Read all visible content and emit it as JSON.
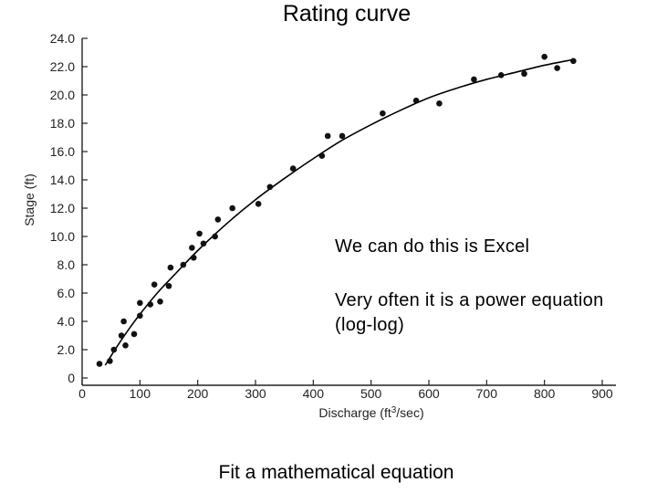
{
  "slide": {
    "title": "Rating curve",
    "note_1": "We can do this is Excel",
    "note_2": "Very often it is a power equation (log-log)",
    "bottom_note": "Fit a mathematical equation"
  },
  "chart_data": {
    "type": "scatter",
    "xlabel": "Discharge (ft3/sec)",
    "ylabel": "Stage (ft)",
    "xlim": [
      0,
      900
    ],
    "ylim": [
      0,
      24
    ],
    "x_ticks": [
      "0",
      "100",
      "200",
      "300",
      "400",
      "500",
      "600",
      "700",
      "800",
      "900"
    ],
    "y_ticks": [
      "0",
      "2.0",
      "4.0",
      "6.0",
      "8.0",
      "10.0",
      "12.0",
      "14.0",
      "16.0",
      "18.0",
      "20.0",
      "22.0",
      "24.0"
    ],
    "grid": false,
    "points": [
      {
        "x": 30,
        "y": 1.0
      },
      {
        "x": 48,
        "y": 1.2
      },
      {
        "x": 55,
        "y": 2.0
      },
      {
        "x": 68,
        "y": 3.0
      },
      {
        "x": 72,
        "y": 4.0
      },
      {
        "x": 75,
        "y": 2.3
      },
      {
        "x": 90,
        "y": 3.1
      },
      {
        "x": 100,
        "y": 5.3
      },
      {
        "x": 100,
        "y": 4.4
      },
      {
        "x": 118,
        "y": 5.2
      },
      {
        "x": 125,
        "y": 6.6
      },
      {
        "x": 135,
        "y": 5.4
      },
      {
        "x": 150,
        "y": 6.5
      },
      {
        "x": 153,
        "y": 7.8
      },
      {
        "x": 175,
        "y": 8.0
      },
      {
        "x": 190,
        "y": 9.2
      },
      {
        "x": 193,
        "y": 8.5
      },
      {
        "x": 203,
        "y": 10.2
      },
      {
        "x": 210,
        "y": 9.5
      },
      {
        "x": 230,
        "y": 10.0
      },
      {
        "x": 235,
        "y": 11.2
      },
      {
        "x": 260,
        "y": 12.0
      },
      {
        "x": 305,
        "y": 12.3
      },
      {
        "x": 325,
        "y": 13.5
      },
      {
        "x": 365,
        "y": 14.8
      },
      {
        "x": 415,
        "y": 15.7
      },
      {
        "x": 425,
        "y": 17.1
      },
      {
        "x": 450,
        "y": 17.1
      },
      {
        "x": 520,
        "y": 18.7
      },
      {
        "x": 578,
        "y": 19.6
      },
      {
        "x": 618,
        "y": 19.4
      },
      {
        "x": 678,
        "y": 21.1
      },
      {
        "x": 725,
        "y": 21.4
      },
      {
        "x": 765,
        "y": 21.5
      },
      {
        "x": 800,
        "y": 22.7
      },
      {
        "x": 822,
        "y": 21.9
      },
      {
        "x": 850,
        "y": 22.4
      }
    ],
    "fit_line": {
      "x": [
        40,
        60,
        80,
        100,
        130,
        160,
        200,
        250,
        300,
        350,
        400,
        450,
        500,
        550,
        600,
        650,
        700,
        750,
        800,
        850
      ],
      "y": [
        0.9,
        2.2,
        3.4,
        4.5,
        6.0,
        7.3,
        9.0,
        10.9,
        12.6,
        14.1,
        15.5,
        16.8,
        17.9,
        18.9,
        19.8,
        20.5,
        21.1,
        21.6,
        22.1,
        22.5
      ]
    }
  }
}
